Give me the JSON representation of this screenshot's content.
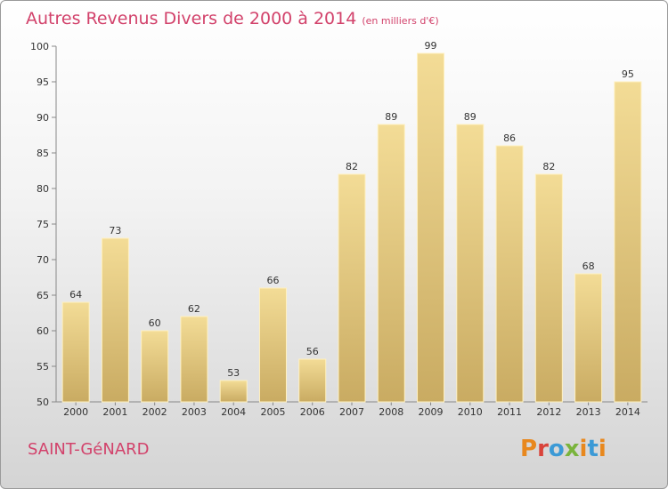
{
  "header": {
    "title": "Autres Revenus Divers de 2000 à 2014",
    "subtitle": "(en milliers d'€)"
  },
  "footer": {
    "commune": "SAINT-GéNARD",
    "logo": "Proxiti"
  },
  "colors": {
    "bar_fill_top": "#f3dc96",
    "bar_fill_bottom": "#c9ab62",
    "bar_edge": "#fff1c0",
    "title": "#d2426b",
    "axis": "#888888"
  },
  "chart_data": {
    "type": "bar",
    "title": "Autres Revenus Divers de 2000 à 2014",
    "subtitle": "(en milliers d'€)",
    "categories": [
      "2000",
      "2001",
      "2002",
      "2003",
      "2004",
      "2005",
      "2006",
      "2007",
      "2008",
      "2009",
      "2010",
      "2011",
      "2012",
      "2013",
      "2014"
    ],
    "values": [
      64,
      73,
      60,
      62,
      53,
      66,
      56,
      82,
      89,
      99,
      89,
      86,
      82,
      68,
      95
    ],
    "ylim": [
      50,
      100
    ],
    "yticks": [
      50,
      55,
      60,
      65,
      70,
      75,
      80,
      85,
      90,
      95,
      100
    ],
    "grid": false,
    "data_labels": true
  }
}
